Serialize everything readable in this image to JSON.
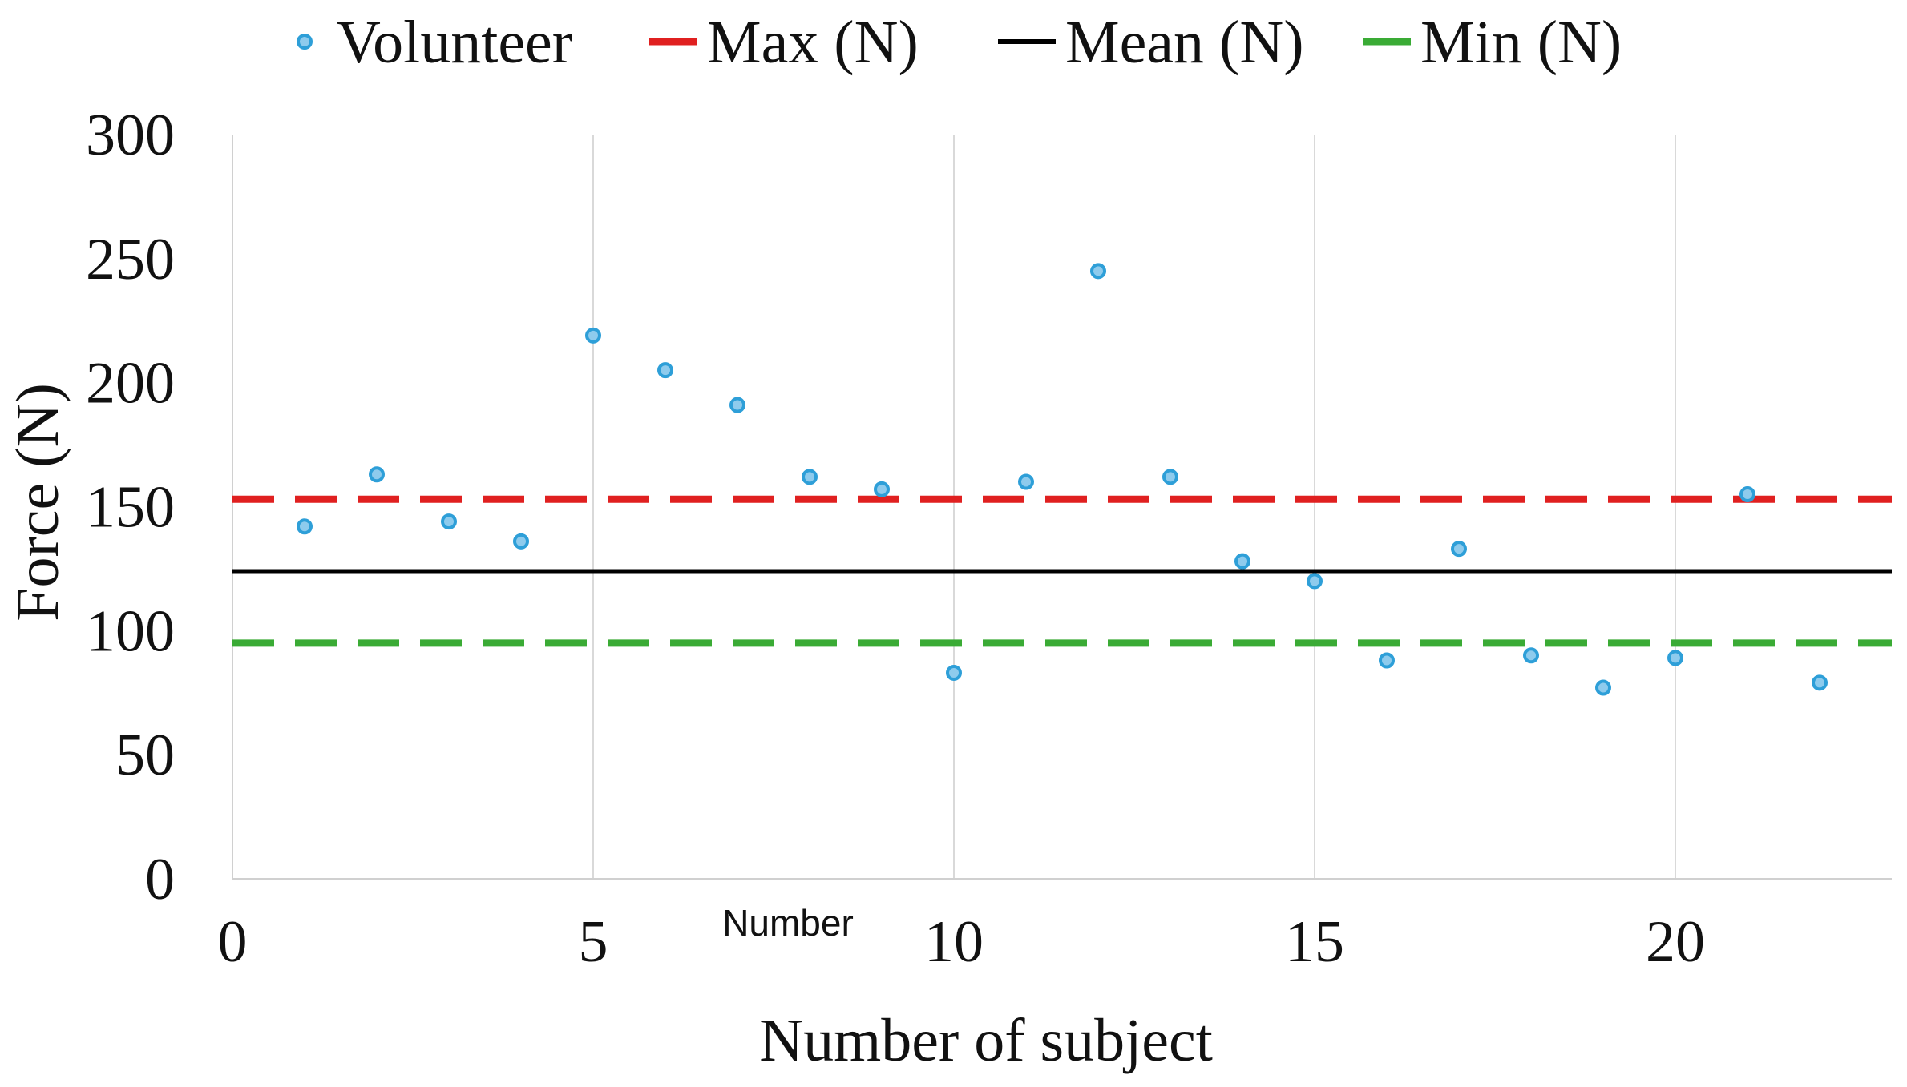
{
  "chart_data": {
    "type": "scatter",
    "title": "",
    "xlabel": "Number of subject",
    "ylabel": "Force (N)",
    "annotation": "Number",
    "xlim": [
      0,
      23
    ],
    "ylim": [
      0,
      300
    ],
    "x_ticks": [
      0,
      5,
      10,
      15,
      20
    ],
    "y_ticks": [
      0,
      50,
      100,
      150,
      200,
      250,
      300
    ],
    "grid": "vertical",
    "legend_position": "top",
    "series": [
      {
        "name": "Volunteer",
        "kind": "scatter",
        "color": "#2e9fd8",
        "x": [
          1,
          2,
          3,
          4,
          5,
          6,
          7,
          8,
          9,
          10,
          11,
          12,
          13,
          14,
          15,
          16,
          17,
          18,
          19,
          20,
          21,
          22
        ],
        "y": [
          142,
          163,
          144,
          136,
          219,
          205,
          191,
          162,
          157,
          83,
          160,
          245,
          162,
          128,
          120,
          88,
          133,
          90,
          77,
          89,
          155,
          79
        ]
      },
      {
        "name": "Max (N)",
        "kind": "hline",
        "value": 153,
        "color": "#e02020",
        "style": "dashed"
      },
      {
        "name": "Mean (N)",
        "kind": "hline",
        "value": 124,
        "color": "#000000",
        "style": "solid"
      },
      {
        "name": "Min (N)",
        "kind": "hline",
        "value": 95,
        "color": "#3aab35",
        "style": "dashed"
      }
    ]
  }
}
